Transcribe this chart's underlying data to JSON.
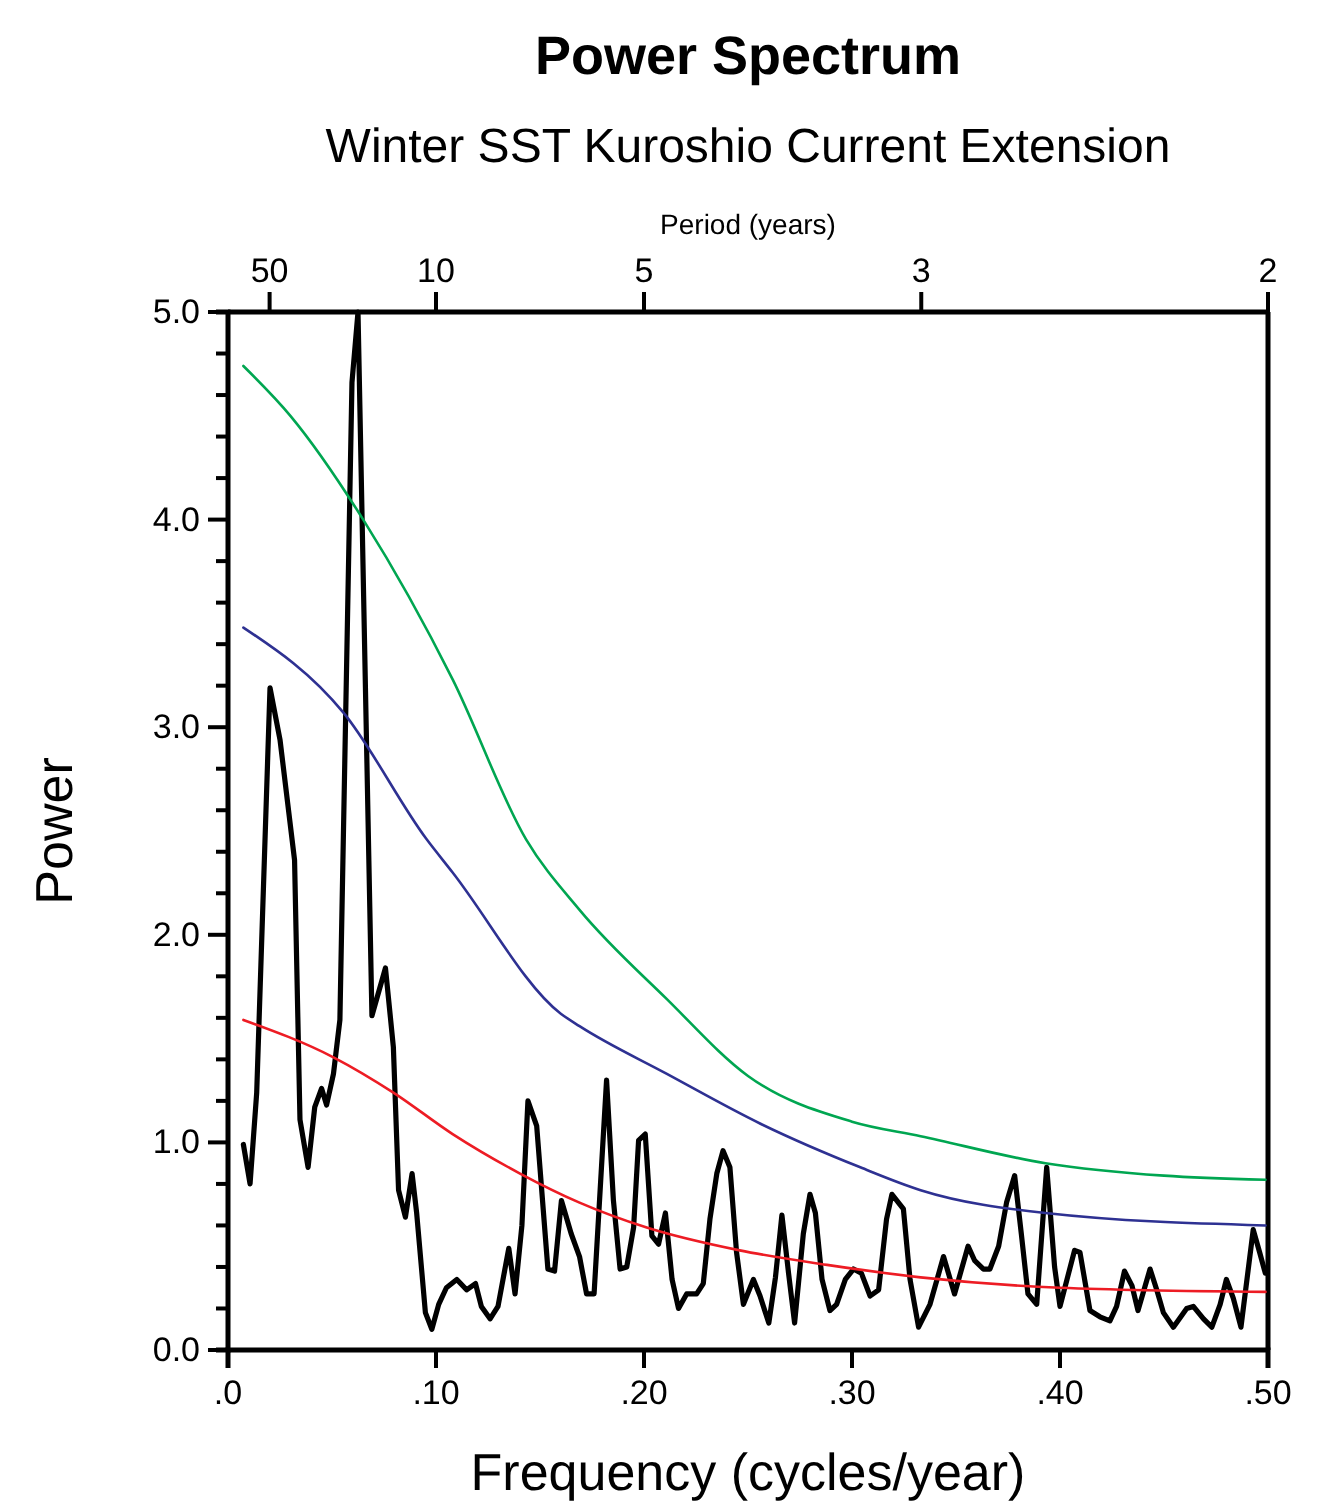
{
  "chart_data": {
    "type": "line",
    "title": "Power Spectrum",
    "subtitle": "Winter SST Kuroshio Current Extension",
    "xlabel": "Frequency (cycles/year)",
    "ylabel": "Power",
    "x2label": "Period (years)",
    "xlim": [
      0,
      0.5
    ],
    "xticks": [
      {
        "value": 0,
        "label": ".0"
      },
      {
        "value": 0.1,
        "label": ".10"
      },
      {
        "value": 0.2,
        "label": ".20"
      },
      {
        "value": 0.3,
        "label": ".30"
      },
      {
        "value": 0.4,
        "label": ".40"
      },
      {
        "value": 0.5,
        "label": ".50"
      }
    ],
    "annotations": [
      {
        "text": "50",
        "x": 0.02
      },
      {
        "text": "10",
        "x": 0.1
      },
      {
        "text": "5",
        "x": 0.2
      },
      {
        "text": "3",
        "x": 0.3333
      },
      {
        "text": "2",
        "x": 0.5
      }
    ],
    "ylim": [
      0,
      5
    ],
    "yticks": [
      {
        "value": 0,
        "label": "0.0"
      },
      {
        "value": 0.2,
        "label": null
      },
      {
        "value": 0.4,
        "label": null
      },
      {
        "value": 0.6,
        "label": null
      },
      {
        "value": 0.8,
        "label": null
      },
      {
        "value": 1,
        "label": "1.0"
      },
      {
        "value": 1.2,
        "label": null
      },
      {
        "value": 1.4,
        "label": null
      },
      {
        "value": 1.6,
        "label": null
      },
      {
        "value": 1.8,
        "label": null
      },
      {
        "value": 2,
        "label": "2.0"
      },
      {
        "value": 2.2,
        "label": null
      },
      {
        "value": 2.4,
        "label": null
      },
      {
        "value": 2.6,
        "label": null
      },
      {
        "value": 2.8,
        "label": null
      },
      {
        "value": 3,
        "label": "3.0"
      },
      {
        "value": 3.2,
        "label": null
      },
      {
        "value": 3.4,
        "label": null
      },
      {
        "value": 3.6,
        "label": null
      },
      {
        "value": 3.8,
        "label": null
      },
      {
        "value": 4,
        "label": "4.0"
      },
      {
        "value": 4.2,
        "label": null
      },
      {
        "value": 4.4,
        "label": null
      },
      {
        "value": 4.6,
        "label": null
      },
      {
        "value": 4.8,
        "label": null
      },
      {
        "value": 5,
        "label": "5.0"
      }
    ],
    "grid": false,
    "marker": "none",
    "line_style": "solid",
    "series": [
      {
        "color": "#000000",
        "x": [
          0.0074,
          0.0106,
          0.0138,
          0.0202,
          0.025,
          0.032,
          0.0346,
          0.0385,
          0.0417,
          0.045,
          0.0474,
          0.0507,
          0.0538,
          0.0596,
          0.0625,
          0.0692,
          0.0757,
          0.0795,
          0.082,
          0.0853,
          0.0885,
          0.0907,
          0.0949,
          0.098,
          0.1013,
          0.105,
          0.11,
          0.1147,
          0.119,
          0.1218,
          0.126,
          0.1298,
          0.135,
          0.138,
          0.1413,
          0.1442,
          0.1484,
          0.1538,
          0.157,
          0.1603,
          0.165,
          0.169,
          0.1724,
          0.176,
          0.182,
          0.1853,
          0.1885,
          0.1917,
          0.195,
          0.1974,
          0.2006,
          0.2038,
          0.207,
          0.2103,
          0.2135,
          0.2166,
          0.2205,
          0.2253,
          0.2285,
          0.2317,
          0.235,
          0.238,
          0.2413,
          0.2445,
          0.2478,
          0.2526,
          0.2558,
          0.26,
          0.2632,
          0.2663,
          0.2695,
          0.2724,
          0.2766,
          0.2798,
          0.2824,
          0.2856,
          0.2894,
          0.2926,
          0.2968,
          0.3007,
          0.3045,
          0.3087,
          0.3128,
          0.3166,
          0.3192,
          0.3247,
          0.3279,
          0.332,
          0.3375,
          0.344,
          0.3493,
          0.3558,
          0.359,
          0.3632,
          0.3663,
          0.3705,
          0.3743,
          0.3782,
          0.3814,
          0.3846,
          0.3888,
          0.3936,
          0.3974,
          0.4,
          0.407,
          0.4096,
          0.4144,
          0.4192,
          0.424,
          0.4272,
          0.431,
          0.4346,
          0.4375,
          0.4433,
          0.4465,
          0.4497,
          0.4545,
          0.4609,
          0.4641,
          0.469,
          0.473,
          0.477,
          0.48,
          0.4833,
          0.487,
          0.4929,
          0.496,
          0.4987
        ],
        "values": [
          0.99,
          0.8,
          1.24,
          3.19,
          2.94,
          2.36,
          1.11,
          0.88,
          1.17,
          1.26,
          1.18,
          1.33,
          1.59,
          4.66,
          5.0,
          1.61,
          1.84,
          1.46,
          0.77,
          0.64,
          0.85,
          0.66,
          0.18,
          0.1,
          0.22,
          0.3,
          0.34,
          0.29,
          0.32,
          0.21,
          0.15,
          0.21,
          0.49,
          0.27,
          0.6,
          1.2,
          1.08,
          0.39,
          0.38,
          0.72,
          0.56,
          0.45,
          0.27,
          0.27,
          1.3,
          0.72,
          0.39,
          0.4,
          0.59,
          1.01,
          1.04,
          0.55,
          0.51,
          0.66,
          0.34,
          0.2,
          0.27,
          0.27,
          0.32,
          0.63,
          0.85,
          0.96,
          0.88,
          0.47,
          0.22,
          0.34,
          0.26,
          0.13,
          0.35,
          0.65,
          0.37,
          0.13,
          0.56,
          0.75,
          0.66,
          0.34,
          0.19,
          0.22,
          0.34,
          0.39,
          0.37,
          0.26,
          0.29,
          0.63,
          0.75,
          0.68,
          0.34,
          0.11,
          0.22,
          0.45,
          0.27,
          0.5,
          0.43,
          0.39,
          0.39,
          0.5,
          0.71,
          0.84,
          0.56,
          0.27,
          0.22,
          0.88,
          0.4,
          0.21,
          0.48,
          0.47,
          0.19,
          0.16,
          0.14,
          0.21,
          0.38,
          0.31,
          0.19,
          0.39,
          0.29,
          0.18,
          0.11,
          0.2,
          0.21,
          0.15,
          0.11,
          0.22,
          0.34,
          0.25,
          0.11,
          0.58,
          0.47,
          0.37
        ]
      },
      {
        "color": "#00a651",
        "x": [
          0.0074,
          0.03,
          0.065,
          0.108,
          0.1433,
          0.169,
          0.211,
          0.25,
          0.3,
          0.333,
          0.393,
          0.45,
          0.4988
        ],
        "values": [
          4.74,
          4.5,
          4.0,
          3.23,
          2.46,
          2.12,
          1.69,
          1.32,
          1.1,
          1.03,
          0.9,
          0.84,
          0.82
        ]
      },
      {
        "color": "#2e3192",
        "x": [
          0.0074,
          0.0555,
          0.0955,
          0.108,
          0.16,
          0.169,
          0.211,
          0.256,
          0.304,
          0.333,
          0.393,
          0.4988
        ],
        "values": [
          3.48,
          3.07,
          2.46,
          2.3,
          1.62,
          1.56,
          1.33,
          1.09,
          0.88,
          0.77,
          0.66,
          0.6
        ]
      },
      {
        "color": "#ed1c24",
        "x": [
          0.0074,
          0.0507,
          0.0795,
          0.108,
          0.1404,
          0.169,
          0.2013,
          0.246,
          0.288,
          0.333,
          0.4,
          0.4988
        ],
        "values": [
          1.59,
          1.41,
          1.24,
          1.04,
          0.85,
          0.71,
          0.59,
          0.48,
          0.41,
          0.35,
          0.3,
          0.28
        ]
      }
    ]
  }
}
